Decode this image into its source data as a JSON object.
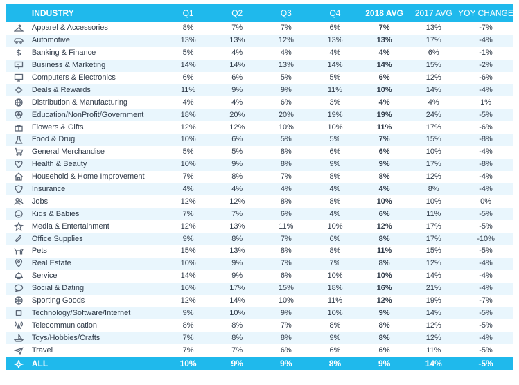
{
  "chart_data": {
    "type": "table",
    "columns": [
      "INDUSTRY",
      "Q1",
      "Q2",
      "Q3",
      "Q4",
      "2018 AVG",
      "2017 AVG",
      "YOY CHANGE"
    ],
    "rows": [
      {
        "icon": "hanger-icon",
        "industry": "Apparel & Accessories",
        "q1": "8%",
        "q2": "7%",
        "q3": "7%",
        "q4": "6%",
        "avg2018": "7%",
        "avg2017": "13%",
        "yoy": "-7%"
      },
      {
        "icon": "car-icon",
        "industry": "Automotive",
        "q1": "13%",
        "q2": "13%",
        "q3": "12%",
        "q4": "13%",
        "avg2018": "13%",
        "avg2017": "17%",
        "yoy": "-4%"
      },
      {
        "icon": "dollar-icon",
        "industry": "Banking & Finance",
        "q1": "5%",
        "q2": "4%",
        "q3": "4%",
        "q4": "4%",
        "avg2018": "4%",
        "avg2017": "6%",
        "yoy": "-1%"
      },
      {
        "icon": "presentation-icon",
        "industry": "Business & Marketing",
        "q1": "14%",
        "q2": "14%",
        "q3": "13%",
        "q4": "14%",
        "avg2018": "14%",
        "avg2017": "15%",
        "yoy": "-2%"
      },
      {
        "icon": "monitor-icon",
        "industry": "Computers & Electronics",
        "q1": "6%",
        "q2": "6%",
        "q3": "5%",
        "q4": "5%",
        "avg2018": "6%",
        "avg2017": "12%",
        "yoy": "-6%"
      },
      {
        "icon": "badge-icon",
        "industry": "Deals & Rewards",
        "q1": "11%",
        "q2": "9%",
        "q3": "9%",
        "q4": "11%",
        "avg2018": "10%",
        "avg2017": "14%",
        "yoy": "-4%"
      },
      {
        "icon": "globe-icon",
        "industry": "Distribution & Manufacturing",
        "q1": "4%",
        "q2": "4%",
        "q3": "6%",
        "q4": "3%",
        "avg2018": "4%",
        "avg2017": "4%",
        "yoy": "1%"
      },
      {
        "icon": "circles-icon",
        "industry": "Education/NonProfit/Government",
        "q1": "18%",
        "q2": "20%",
        "q3": "20%",
        "q4": "19%",
        "avg2018": "19%",
        "avg2017": "24%",
        "yoy": "-5%"
      },
      {
        "icon": "gift-icon",
        "industry": "Flowers & Gifts",
        "q1": "12%",
        "q2": "12%",
        "q3": "10%",
        "q4": "10%",
        "avg2018": "11%",
        "avg2017": "17%",
        "yoy": "-6%"
      },
      {
        "icon": "flask-icon",
        "industry": "Food & Drug",
        "q1": "10%",
        "q2": "6%",
        "q3": "5%",
        "q4": "5%",
        "avg2018": "7%",
        "avg2017": "15%",
        "yoy": "-8%"
      },
      {
        "icon": "cart-icon",
        "industry": "General Merchandise",
        "q1": "5%",
        "q2": "5%",
        "q3": "8%",
        "q4": "6%",
        "avg2018": "6%",
        "avg2017": "10%",
        "yoy": "-4%"
      },
      {
        "icon": "heart-icon",
        "industry": "Health & Beauty",
        "q1": "10%",
        "q2": "9%",
        "q3": "8%",
        "q4": "9%",
        "avg2018": "9%",
        "avg2017": "17%",
        "yoy": "-8%"
      },
      {
        "icon": "house-icon",
        "industry": "Household & Home Improvement",
        "q1": "7%",
        "q2": "8%",
        "q3": "7%",
        "q4": "8%",
        "avg2018": "8%",
        "avg2017": "12%",
        "yoy": "-4%"
      },
      {
        "icon": "shield-icon",
        "industry": "Insurance",
        "q1": "4%",
        "q2": "4%",
        "q3": "4%",
        "q4": "4%",
        "avg2018": "4%",
        "avg2017": "8%",
        "yoy": "-4%"
      },
      {
        "icon": "people-icon",
        "industry": "Jobs",
        "q1": "12%",
        "q2": "12%",
        "q3": "8%",
        "q4": "8%",
        "avg2018": "10%",
        "avg2017": "10%",
        "yoy": "0%"
      },
      {
        "icon": "smiley-icon",
        "industry": "Kids & Babies",
        "q1": "7%",
        "q2": "7%",
        "q3": "6%",
        "q4": "4%",
        "avg2018": "6%",
        "avg2017": "11%",
        "yoy": "-5%"
      },
      {
        "icon": "star-icon",
        "industry": "Media & Entertainment",
        "q1": "12%",
        "q2": "13%",
        "q3": "11%",
        "q4": "10%",
        "avg2018": "12%",
        "avg2017": "17%",
        "yoy": "-5%"
      },
      {
        "icon": "paperclip-icon",
        "industry": "Office Supplies",
        "q1": "9%",
        "q2": "8%",
        "q3": "7%",
        "q4": "6%",
        "avg2018": "8%",
        "avg2017": "17%",
        "yoy": "-10%"
      },
      {
        "icon": "dog-icon",
        "industry": "Pets",
        "q1": "15%",
        "q2": "13%",
        "q3": "8%",
        "q4": "8%",
        "avg2018": "11%",
        "avg2017": "15%",
        "yoy": "-5%"
      },
      {
        "icon": "pin-icon",
        "industry": "Real Estate",
        "q1": "10%",
        "q2": "9%",
        "q3": "7%",
        "q4": "7%",
        "avg2018": "8%",
        "avg2017": "12%",
        "yoy": "-4%"
      },
      {
        "icon": "bell-icon",
        "industry": "Service",
        "q1": "14%",
        "q2": "9%",
        "q3": "6%",
        "q4": "10%",
        "avg2018": "10%",
        "avg2017": "14%",
        "yoy": "-4%"
      },
      {
        "icon": "chat-icon",
        "industry": "Social & Dating",
        "q1": "16%",
        "q2": "17%",
        "q3": "15%",
        "q4": "18%",
        "avg2018": "16%",
        "avg2017": "21%",
        "yoy": "-4%"
      },
      {
        "icon": "ball-icon",
        "industry": "Sporting Goods",
        "q1": "12%",
        "q2": "14%",
        "q3": "10%",
        "q4": "11%",
        "avg2018": "12%",
        "avg2017": "19%",
        "yoy": "-7%"
      },
      {
        "icon": "chip-icon",
        "industry": "Technology/Software/Internet",
        "q1": "9%",
        "q2": "10%",
        "q3": "9%",
        "q4": "10%",
        "avg2018": "9%",
        "avg2017": "14%",
        "yoy": "-5%"
      },
      {
        "icon": "antenna-icon",
        "industry": "Telecommunication",
        "q1": "8%",
        "q2": "8%",
        "q3": "7%",
        "q4": "8%",
        "avg2018": "8%",
        "avg2017": "12%",
        "yoy": "-5%"
      },
      {
        "icon": "boat-icon",
        "industry": "Toys/Hobbies/Crafts",
        "q1": "7%",
        "q2": "8%",
        "q3": "8%",
        "q4": "9%",
        "avg2018": "8%",
        "avg2017": "12%",
        "yoy": "-4%"
      },
      {
        "icon": "plane-icon",
        "industry": "Travel",
        "q1": "7%",
        "q2": "7%",
        "q3": "6%",
        "q4": "6%",
        "avg2018": "6%",
        "avg2017": "11%",
        "yoy": "-5%"
      }
    ],
    "total": {
      "icon": "sparkle-icon",
      "industry": "ALL",
      "q1": "10%",
      "q2": "9%",
      "q3": "9%",
      "q4": "8%",
      "avg2018": "9%",
      "avg2017": "14%",
      "yoy": "-5%"
    },
    "colors": {
      "header": "#1fb9ec",
      "row_alt": "#e9f6fd",
      "text": "#2f3a48"
    }
  }
}
